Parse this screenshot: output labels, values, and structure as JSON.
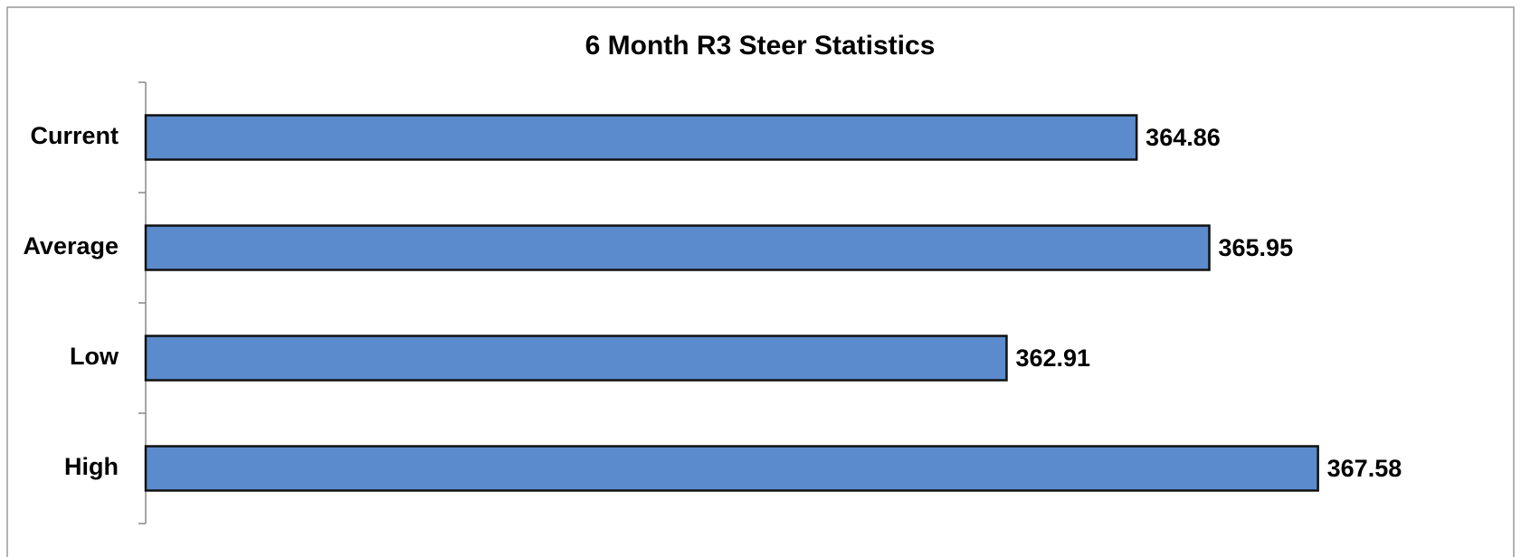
{
  "chart_data": {
    "type": "bar",
    "orientation": "horizontal",
    "title": "6 Month R3 Steer Statistics",
    "categories": [
      "Current",
      "Average",
      "Low",
      "High"
    ],
    "values": [
      364.86,
      365.95,
      362.91,
      367.58
    ],
    "color": "#5b8bcc",
    "xlim": [
      350,
      370
    ]
  }
}
